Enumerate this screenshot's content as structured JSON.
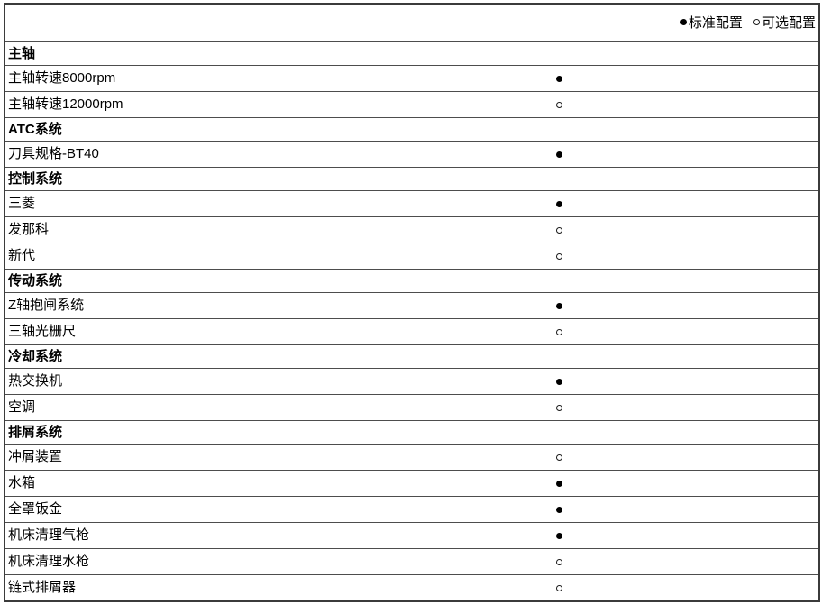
{
  "legend": {
    "items": [
      {
        "marker": "standard",
        "label": "标准配置"
      },
      {
        "marker": "optional",
        "label": "可选配置"
      }
    ]
  },
  "table": {
    "sections": [
      {
        "title": "主轴",
        "rows": [
          {
            "label": "主轴转速8000rpm",
            "status": "standard"
          },
          {
            "label": "主轴转速12000rpm",
            "status": "optional"
          }
        ]
      },
      {
        "title": "ATC系统",
        "rows": [
          {
            "label": "刀具规格-BT40",
            "status": "standard"
          }
        ]
      },
      {
        "title": "控制系统",
        "rows": [
          {
            "label": "三菱",
            "status": "standard"
          },
          {
            "label": "发那科",
            "status": "optional"
          },
          {
            "label": "新代",
            "status": "optional"
          }
        ]
      },
      {
        "title": "传动系统",
        "rows": [
          {
            "label": "Z轴抱闸系统",
            "status": "standard"
          },
          {
            "label": "三轴光栅尺",
            "status": "optional"
          }
        ]
      },
      {
        "title": "冷却系统",
        "rows": [
          {
            "label": "热交换机",
            "status": "standard"
          },
          {
            "label": "空调",
            "status": "optional"
          }
        ]
      },
      {
        "title": "排屑系统",
        "rows": [
          {
            "label": "冲屑装置",
            "status": "optional"
          },
          {
            "label": "水箱",
            "status": "standard"
          },
          {
            "label": "全罩钣金",
            "status": "standard"
          },
          {
            "label": "机床清理气枪",
            "status": "standard"
          },
          {
            "label": "机床清理水枪",
            "status": "optional"
          },
          {
            "label": "链式排屑器",
            "status": "optional"
          }
        ]
      }
    ]
  },
  "colors": {
    "border_outer": "#3b3b3b",
    "border_inner": "#4d4d4d",
    "text": "#000000",
    "marker": "#000000",
    "background": "#ffffff"
  }
}
